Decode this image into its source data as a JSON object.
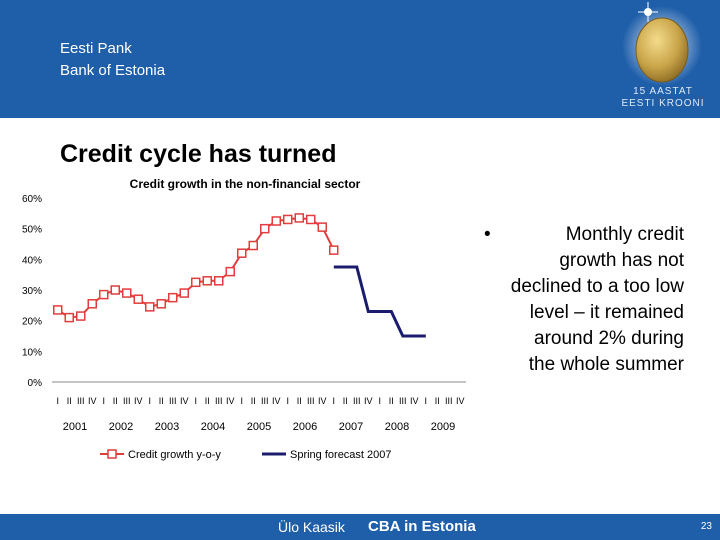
{
  "header": {
    "org_line1": "Eesti Pank",
    "org_line2": "Bank of Estonia",
    "logo_line1": "15 AASTAT",
    "logo_line2": "EESTI KROONI",
    "background_color": "#1f5faa"
  },
  "slide_title": "Credit cycle has turned",
  "bullet": {
    "symbol": "•",
    "text": "Monthly credit growth has not declined to a too low level – it remained around 2% during the whole summer"
  },
  "footer": {
    "author": "Ülo Kaasik",
    "event": "CBA in Estonia",
    "page_number": "23"
  },
  "chart_data": {
    "type": "line",
    "title": "Credit growth in the non-financial sector",
    "ylim": [
      0,
      60
    ],
    "y_ticks": [
      "0%",
      "10%",
      "20%",
      "30%",
      "40%",
      "50%",
      "60%"
    ],
    "quarter_labels": [
      "I",
      "II",
      "III",
      "IV"
    ],
    "years": [
      "2001",
      "2002",
      "2003",
      "2004",
      "2005",
      "2006",
      "2007",
      "2008",
      "2009"
    ],
    "legend_position": "bottom",
    "series": [
      {
        "name": "Credit growth y-o-y",
        "color": "#e23c3c",
        "marker": "square",
        "start_index": 0,
        "values": [
          23.5,
          21,
          21.5,
          25.5,
          28.5,
          30,
          29,
          27,
          24.5,
          25.5,
          27.5,
          29,
          32.5,
          33,
          33,
          36,
          42,
          44.5,
          50,
          52.5,
          53,
          53.5,
          53,
          50.5,
          43
        ]
      },
      {
        "name": "Spring forecast 2007",
        "color": "#1c1c6e",
        "marker": "none",
        "start_index": 24,
        "values": [
          37.5,
          37.5,
          37.5,
          23,
          23,
          23,
          15,
          15,
          15
        ]
      }
    ]
  }
}
